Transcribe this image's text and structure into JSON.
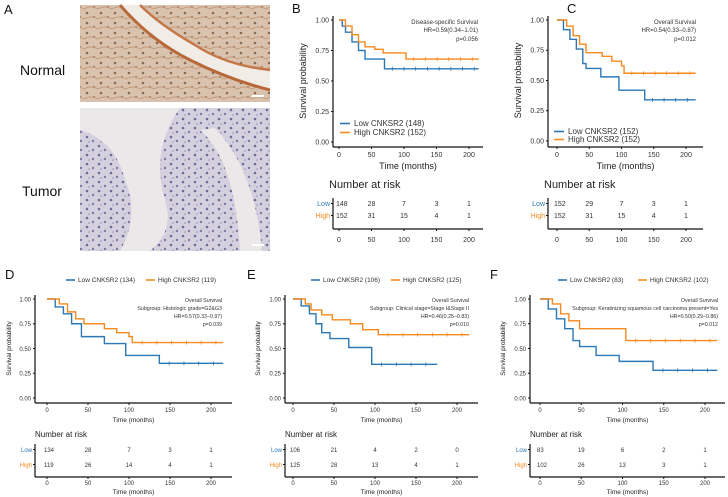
{
  "colors": {
    "low": "#2b78b5",
    "high": "#f58a1f"
  },
  "panel_a": {
    "label": "A",
    "rows": [
      {
        "label": "Normal",
        "stain": "brown-epithelium"
      },
      {
        "label": "Tumor",
        "stain": "purple-hematoxylin"
      }
    ]
  },
  "chart_data": [
    {
      "id": "B",
      "type": "line",
      "label": "B",
      "xlabel": "Time (months)",
      "ylabel": "Survival probability",
      "xlim": [
        0,
        215
      ],
      "ylim": [
        0,
        1
      ],
      "xticks": [
        "0",
        "50",
        "100",
        "150",
        "200"
      ],
      "yticks": [
        "0.00",
        "0.25",
        "0.50",
        "0.75",
        "1.00"
      ],
      "legend_position": "bottom-left",
      "annotations": [
        "Disease-specific Survival",
        "HR=0.59(0.34–1.01)",
        "p=0.056"
      ],
      "series": [
        {
          "name": "Low CNKSR2 (148)",
          "group": "low",
          "points": [
            [
              0,
              1
            ],
            [
              5,
              0.95
            ],
            [
              10,
              0.9
            ],
            [
              20,
              0.82
            ],
            [
              30,
              0.75
            ],
            [
              40,
              0.68
            ],
            [
              70,
              0.6
            ],
            [
              215,
              0.6
            ]
          ]
        },
        {
          "name": "High CNKSR2 (152)",
          "group": "high",
          "points": [
            [
              0,
              1
            ],
            [
              10,
              0.95
            ],
            [
              20,
              0.88
            ],
            [
              30,
              0.82
            ],
            [
              40,
              0.78
            ],
            [
              55,
              0.76
            ],
            [
              68,
              0.73
            ],
            [
              103,
              0.68
            ],
            [
              215,
              0.68
            ]
          ]
        }
      ],
      "risk": {
        "title": "Number at risk",
        "row_labels": [
          "Low",
          "High"
        ],
        "times": [
          "0",
          "50",
          "100",
          "150",
          "200"
        ],
        "low": [
          "148",
          "28",
          "7",
          "3",
          "1"
        ],
        "high": [
          "152",
          "31",
          "15",
          "4",
          "1"
        ]
      }
    },
    {
      "id": "C",
      "type": "line",
      "label": "C",
      "xlabel": "Time (months)",
      "ylabel": "Survival probability",
      "xlim": [
        0,
        215
      ],
      "ylim": [
        0,
        1
      ],
      "xticks": [
        "0",
        "50",
        "100",
        "150",
        "200"
      ],
      "yticks": [
        "0.00",
        "0.25",
        "0.50",
        "0.75",
        "1.00"
      ],
      "legend_position": "bottom-left",
      "annotations": [
        "Overall Survival",
        "HR=0.54(0.33–0.87)",
        "p=0.012"
      ],
      "series": [
        {
          "name": "Low CNKSR2 (152)",
          "group": "low",
          "points": [
            [
              0,
              1
            ],
            [
              10,
              0.92
            ],
            [
              20,
              0.84
            ],
            [
              30,
              0.76
            ],
            [
              40,
              0.64
            ],
            [
              45,
              0.6
            ],
            [
              68,
              0.53
            ],
            [
              96,
              0.42
            ],
            [
              136,
              0.34
            ],
            [
              215,
              0.34
            ]
          ]
        },
        {
          "name": "High CNKSR2 (152)",
          "group": "high",
          "points": [
            [
              0,
              1
            ],
            [
              15,
              0.95
            ],
            [
              25,
              0.87
            ],
            [
              35,
              0.8
            ],
            [
              45,
              0.73
            ],
            [
              70,
              0.7
            ],
            [
              85,
              0.66
            ],
            [
              100,
              0.62
            ],
            [
              104,
              0.56
            ],
            [
              215,
              0.56
            ]
          ]
        }
      ],
      "risk": {
        "title": "Number at risk",
        "row_labels": [
          "Low",
          "High"
        ],
        "times": [
          "0",
          "50",
          "100",
          "150",
          "200"
        ],
        "low": [
          "152",
          "29",
          "7",
          "3",
          "1"
        ],
        "high": [
          "152",
          "31",
          "15",
          "4",
          "1"
        ]
      }
    },
    {
      "id": "D",
      "type": "line",
      "label": "D",
      "xlabel": "Time (months)",
      "ylabel": "Survival probability",
      "xlim": [
        0,
        215
      ],
      "ylim": [
        0,
        1
      ],
      "xticks": [
        "0",
        "50",
        "100",
        "150",
        "200"
      ],
      "yticks": [
        "0.00",
        "0.25",
        "0.50",
        "0.75",
        "1.00"
      ],
      "legend_position": "top",
      "annotations": [
        "Overall Survival",
        "Subgroup: Histologic grade=G2&G3",
        "HR=0.57(0.33–0.97)",
        "p=0.039"
      ],
      "series": [
        {
          "name": "Low CNKSR2 (134)",
          "group": "low",
          "points": [
            [
              0,
              1
            ],
            [
              10,
              0.92
            ],
            [
              20,
              0.85
            ],
            [
              30,
              0.75
            ],
            [
              42,
              0.62
            ],
            [
              70,
              0.55
            ],
            [
              96,
              0.43
            ],
            [
              137,
              0.35
            ],
            [
              215,
              0.35
            ]
          ]
        },
        {
          "name": "High CNKSR2 (119)",
          "group": "high",
          "points": [
            [
              0,
              1
            ],
            [
              15,
              0.95
            ],
            [
              25,
              0.87
            ],
            [
              35,
              0.8
            ],
            [
              45,
              0.75
            ],
            [
              70,
              0.7
            ],
            [
              85,
              0.66
            ],
            [
              100,
              0.62
            ],
            [
              104,
              0.56
            ],
            [
              215,
              0.56
            ]
          ]
        }
      ],
      "risk": {
        "title": "Number at risk",
        "row_labels": [
          "Low",
          "High"
        ],
        "times": [
          "0",
          "50",
          "100",
          "150",
          "200"
        ],
        "low": [
          "134",
          "28",
          "7",
          "3",
          "1"
        ],
        "high": [
          "119",
          "26",
          "14",
          "4",
          "1"
        ]
      }
    },
    {
      "id": "E",
      "type": "line",
      "label": "E",
      "xlabel": "Time (months)",
      "ylabel": "Survival probability",
      "xlim": [
        0,
        215
      ],
      "ylim": [
        0,
        1
      ],
      "xticks": [
        "0",
        "50",
        "100",
        "150",
        "200"
      ],
      "yticks": [
        "0.00",
        "0.25",
        "0.50",
        "0.75",
        "1.00"
      ],
      "legend_position": "top",
      "annotations": [
        "Overall Survival",
        "Subgroup: Clinical stage=Stage I&Stage II",
        "HR=0.46(0.25–0.83)",
        "p=0.010"
      ],
      "series": [
        {
          "name": "Low CNKSR2 (106)",
          "group": "low",
          "points": [
            [
              0,
              1
            ],
            [
              10,
              0.93
            ],
            [
              20,
              0.85
            ],
            [
              28,
              0.75
            ],
            [
              35,
              0.66
            ],
            [
              45,
              0.6
            ],
            [
              68,
              0.51
            ],
            [
              96,
              0.34
            ],
            [
              176,
              0.34
            ]
          ]
        },
        {
          "name": "High CNKSR2 (125)",
          "group": "high",
          "points": [
            [
              0,
              1
            ],
            [
              15,
              0.95
            ],
            [
              22,
              0.89
            ],
            [
              35,
              0.84
            ],
            [
              48,
              0.79
            ],
            [
              70,
              0.75
            ],
            [
              85,
              0.69
            ],
            [
              104,
              0.64
            ],
            [
              215,
              0.64
            ]
          ]
        }
      ],
      "risk": {
        "title": "Number at risk",
        "row_labels": [
          "Low",
          "High"
        ],
        "times": [
          "0",
          "50",
          "100",
          "150",
          "200"
        ],
        "low": [
          "106",
          "21",
          "4",
          "2",
          "0"
        ],
        "high": [
          "125",
          "28",
          "13",
          "4",
          "1"
        ]
      }
    },
    {
      "id": "F",
      "type": "line",
      "label": "F",
      "xlabel": "Time (months)",
      "ylabel": "Survival probability",
      "xlim": [
        0,
        215
      ],
      "ylim": [
        0,
        1
      ],
      "xticks": [
        "0",
        "50",
        "100",
        "150",
        "200"
      ],
      "yticks": [
        "0.00",
        "0.25",
        "0.50",
        "0.75",
        "1.00"
      ],
      "legend_position": "top",
      "annotations": [
        "Overall Survival",
        "Subgroup: Keratinizing squamous cell carcinoma present=Yes",
        "HR=0.50(0.29–0.86)",
        "p=0.012"
      ],
      "series": [
        {
          "name": "Low CNKSR2 (83)",
          "group": "low",
          "points": [
            [
              0,
              1
            ],
            [
              10,
              0.9
            ],
            [
              20,
              0.8
            ],
            [
              30,
              0.7
            ],
            [
              40,
              0.58
            ],
            [
              48,
              0.52
            ],
            [
              68,
              0.43
            ],
            [
              96,
              0.37
            ],
            [
              137,
              0.28
            ],
            [
              215,
              0.28
            ]
          ]
        },
        {
          "name": "High CNKSR2 (102)",
          "group": "high",
          "points": [
            [
              0,
              1
            ],
            [
              15,
              0.95
            ],
            [
              25,
              0.85
            ],
            [
              35,
              0.78
            ],
            [
              48,
              0.7
            ],
            [
              100,
              0.7
            ],
            [
              104,
              0.58
            ],
            [
              215,
              0.58
            ]
          ]
        }
      ],
      "risk": {
        "title": "Number at risk",
        "row_labels": [
          "Low",
          "High"
        ],
        "times": [
          "0",
          "50",
          "100",
          "150",
          "200"
        ],
        "low": [
          "83",
          "19",
          "6",
          "2",
          "1"
        ],
        "high": [
          "102",
          "26",
          "13",
          "3",
          "1"
        ]
      }
    }
  ]
}
